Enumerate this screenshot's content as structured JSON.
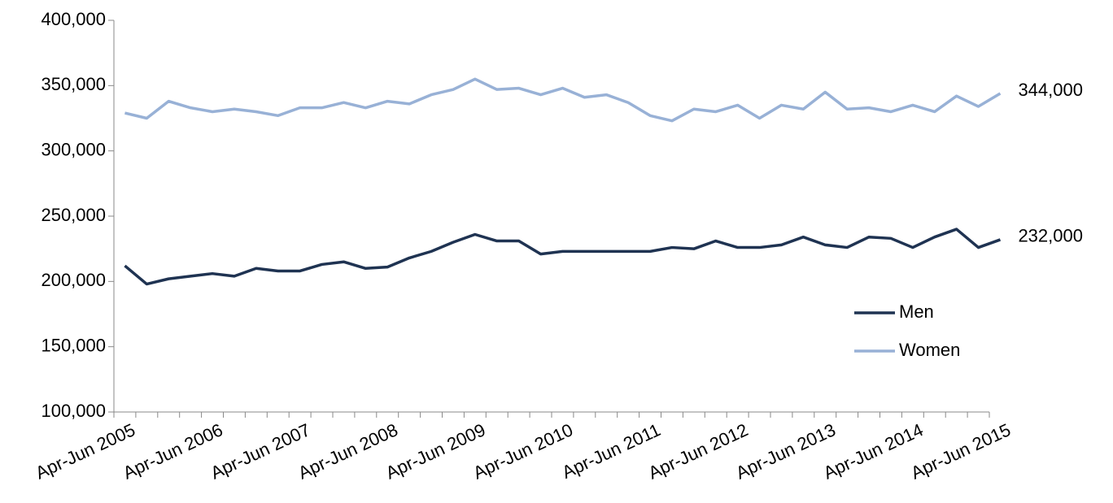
{
  "chart_data": {
    "type": "line",
    "categories": [
      "Apr-Jun 2005",
      null,
      null,
      null,
      "Apr-Jun 2006",
      null,
      null,
      null,
      "Apr-Jun 2007",
      null,
      null,
      null,
      "Apr-Jun 2008",
      null,
      null,
      null,
      "Apr-Jun 2009",
      null,
      null,
      null,
      "Apr-Jun 2010",
      null,
      null,
      null,
      "Apr-Jun 2011",
      null,
      null,
      null,
      "Apr-Jun 2012",
      null,
      null,
      null,
      "Apr-Jun 2013",
      null,
      null,
      null,
      "Apr-Jun 2014",
      null,
      null,
      null,
      "Apr-Jun 2015"
    ],
    "series": [
      {
        "name": "Men",
        "color": "#1f3352",
        "values": [
          212000,
          198000,
          202000,
          204000,
          206000,
          204000,
          210000,
          208000,
          208000,
          213000,
          215000,
          210000,
          211000,
          218000,
          223000,
          230000,
          236000,
          231000,
          231000,
          221000,
          223000,
          223000,
          223000,
          223000,
          223000,
          226000,
          225000,
          231000,
          226000,
          226000,
          228000,
          234000,
          228000,
          226000,
          234000,
          233000,
          226000,
          234000,
          240000,
          226000,
          232000
        ],
        "value_labels": [
          null,
          null,
          null,
          null,
          null,
          null,
          null,
          null,
          null,
          null,
          null,
          null,
          null,
          null,
          null,
          null,
          null,
          null,
          null,
          null,
          null,
          null,
          null,
          null,
          null,
          null,
          null,
          null,
          null,
          null,
          null,
          null,
          null,
          null,
          null,
          null,
          null,
          null,
          null,
          null,
          "232,000"
        ]
      },
      {
        "name": "Women",
        "color": "#98b1d6",
        "values": [
          329000,
          325000,
          338000,
          333000,
          330000,
          332000,
          330000,
          327000,
          333000,
          333000,
          337000,
          333000,
          338000,
          336000,
          343000,
          347000,
          355000,
          347000,
          348000,
          343000,
          348000,
          341000,
          343000,
          337000,
          327000,
          323000,
          332000,
          330000,
          335000,
          325000,
          335000,
          332000,
          345000,
          332000,
          333000,
          330000,
          335000,
          330000,
          342000,
          334000,
          344000
        ],
        "value_labels": [
          null,
          null,
          null,
          null,
          null,
          null,
          null,
          null,
          null,
          null,
          null,
          null,
          null,
          null,
          null,
          null,
          null,
          null,
          null,
          null,
          null,
          null,
          null,
          null,
          null,
          null,
          null,
          null,
          null,
          null,
          null,
          null,
          null,
          null,
          null,
          null,
          null,
          null,
          null,
          null,
          "344,000"
        ]
      }
    ],
    "ylim": [
      100000,
      400000
    ],
    "yticks": [
      {
        "value": 100000,
        "label": "100,000"
      },
      {
        "value": 150000,
        "label": "150,000"
      },
      {
        "value": 200000,
        "label": "200,000"
      },
      {
        "value": 250000,
        "label": "250,000"
      },
      {
        "value": 300000,
        "label": "300,000"
      },
      {
        "value": 350000,
        "label": "350,000"
      },
      {
        "value": 400000,
        "label": "400,000"
      }
    ],
    "grid": false,
    "legend": "right"
  }
}
